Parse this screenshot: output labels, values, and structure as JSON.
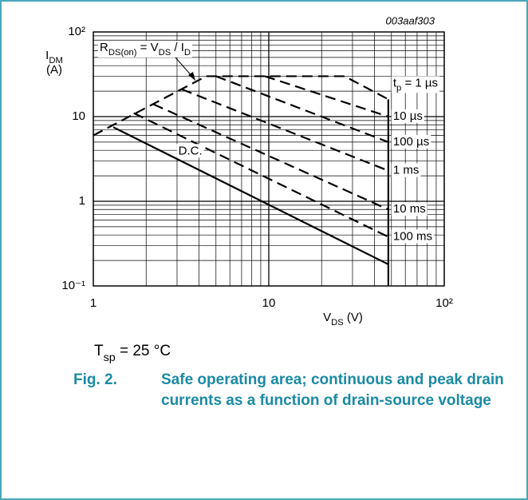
{
  "chart_data": {
    "type": "line",
    "figure_id": "003aaf303",
    "xlabel": [
      "V",
      "DS",
      " (V)"
    ],
    "ylabel": [
      "I",
      "DM"
    ],
    "ylabel_unit": "(A)",
    "xlog": true,
    "ylog": true,
    "grid": true,
    "xlim": [
      1,
      100
    ],
    "ylim": [
      0.1,
      100
    ],
    "xticks": [
      1,
      10,
      {
        "value": 100,
        "label": "10²"
      }
    ],
    "yticks": [
      {
        "value": 0.1,
        "label": "10⁻¹"
      },
      1,
      10,
      {
        "value": 100,
        "label": "10²"
      }
    ],
    "xminorticks": [
      2,
      3,
      4,
      5,
      6,
      7,
      8,
      9,
      20,
      30,
      40,
      50,
      60,
      70,
      80,
      90
    ],
    "yminorticks": [
      0.2,
      0.3,
      0.4,
      0.5,
      0.6,
      0.7,
      0.8,
      0.9,
      2,
      3,
      4,
      5,
      6,
      7,
      8,
      9,
      20,
      30,
      40,
      50,
      60,
      70,
      80,
      90
    ],
    "annotation": [
      "R",
      "DS(on)",
      " = V",
      "DS",
      " / I",
      "D"
    ],
    "series": [
      {
        "name": [
          "t",
          "p",
          " = 1 µs"
        ],
        "color": "#000000",
        "dashed": true,
        "x": [
          1,
          4.4,
          27,
          48
        ],
        "values": [
          6,
          30,
          30,
          16
        ]
      },
      {
        "name": "10 µs",
        "color": "#000000",
        "dashed": true,
        "x": [
          9.5,
          48
        ],
        "values": [
          30,
          10
        ]
      },
      {
        "name": "100 µs",
        "color": "#000000",
        "dashed": true,
        "x": [
          5,
          48
        ],
        "values": [
          30,
          5
        ]
      },
      {
        "name": "1 ms",
        "color": "#000000",
        "dashed": true,
        "x": [
          3.2,
          48
        ],
        "values": [
          21,
          2.3
        ]
      },
      {
        "name": "10 ms",
        "color": "#000000",
        "dashed": true,
        "x": [
          2.2,
          48
        ],
        "values": [
          14,
          0.8
        ]
      },
      {
        "name": "100 ms",
        "color": "#000000",
        "dashed": true,
        "x": [
          1.7,
          48
        ],
        "values": [
          11,
          0.38
        ]
      },
      {
        "name": "D.C.",
        "color": "#000000",
        "dashed": false,
        "x": [
          1.3,
          48
        ],
        "values": [
          7.5,
          0.18
        ]
      },
      {
        "color": "#000000",
        "dashed": false,
        "x": [
          48,
          48
        ],
        "values": [
          16,
          0.1
        ]
      }
    ],
    "condition": [
      "T",
      "sp",
      " = 25 °C"
    ],
    "caption_number": "Fig. 2.",
    "caption_lines": [
      "Safe operating area; continuous and peak drain",
      "currents as a function of drain-source voltage"
    ]
  }
}
